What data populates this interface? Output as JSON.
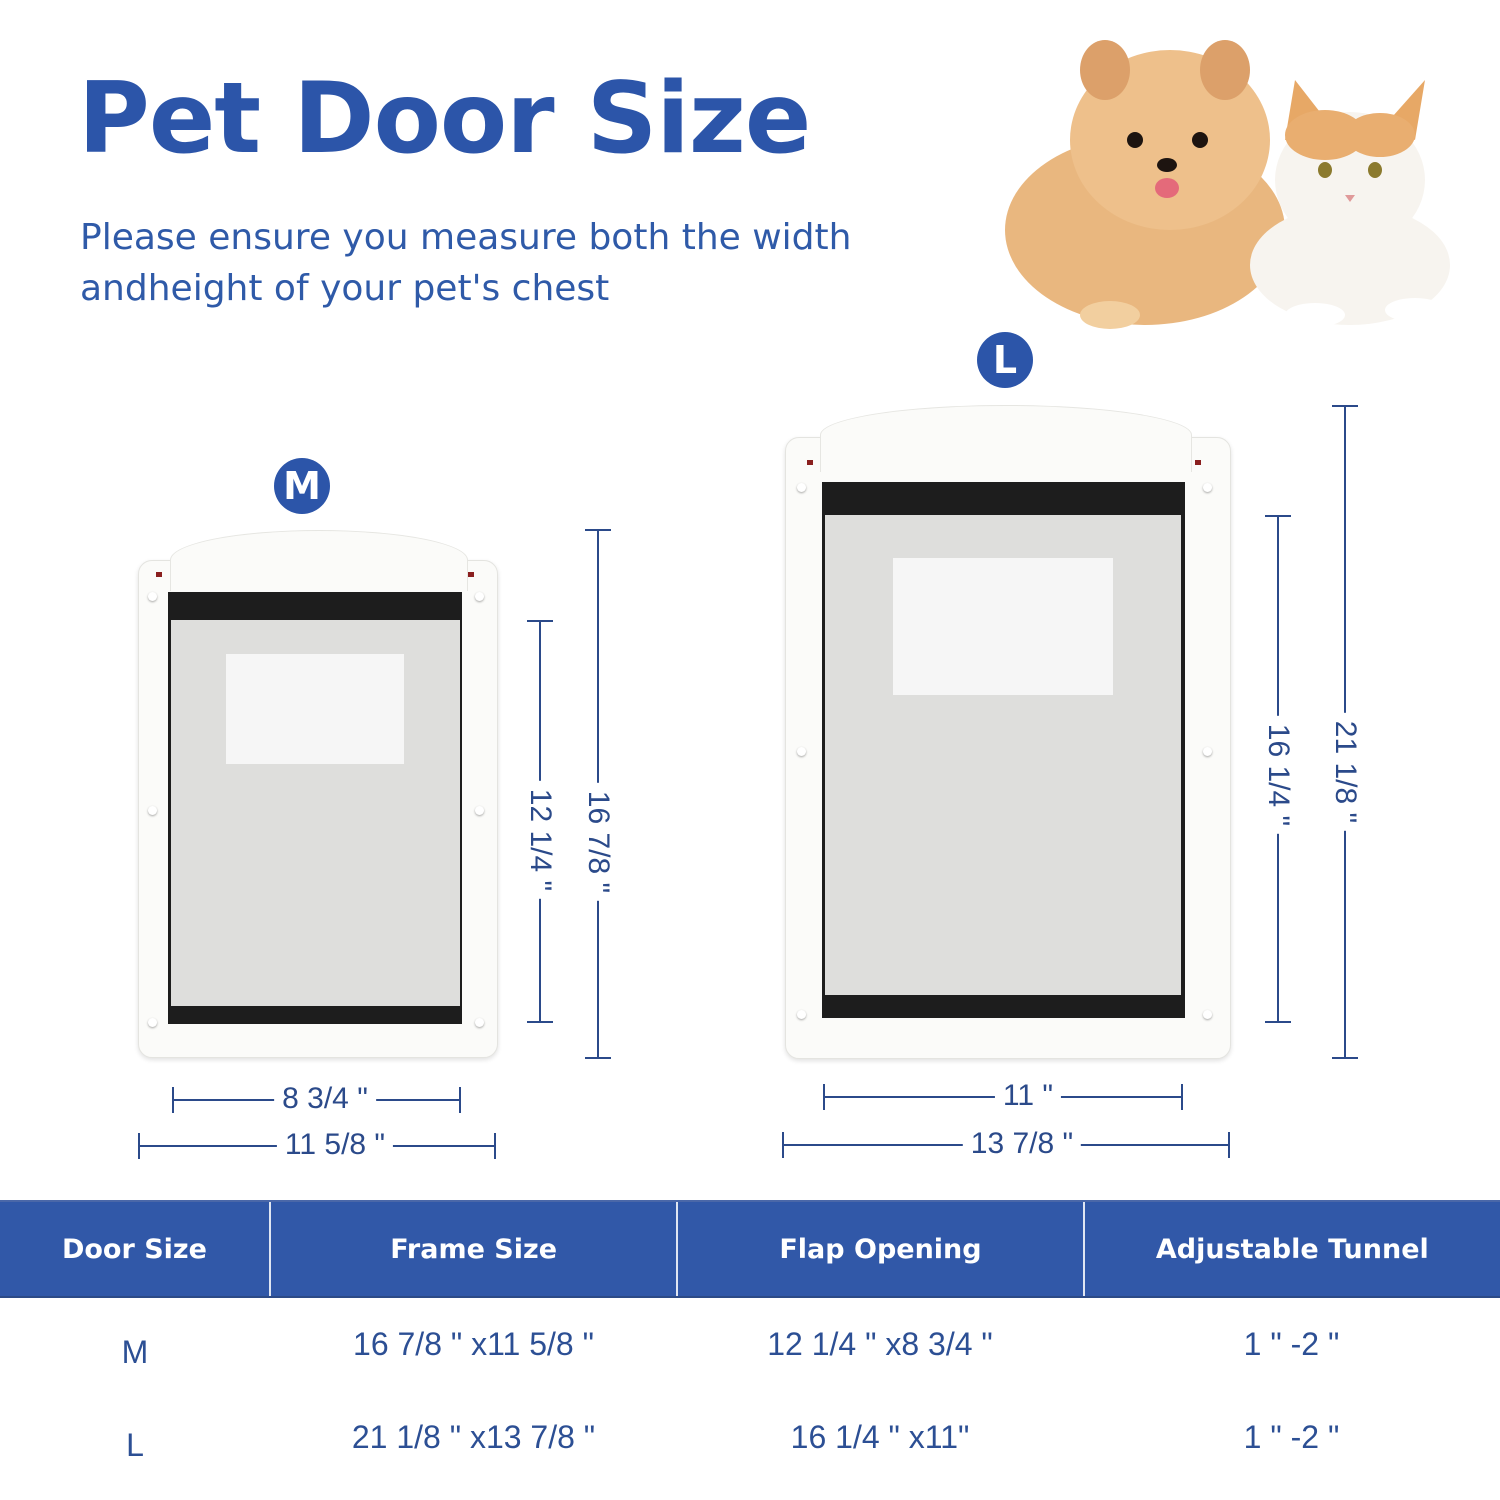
{
  "header": {
    "title": "Pet Door Size",
    "subtitle_line1": "Please ensure you measure both the width",
    "subtitle_line2": "andheight of your pet's chest"
  },
  "image": {
    "subject": "pets-photo"
  },
  "colors": {
    "brand_blue": "#2c55a9",
    "table_header": "#3158a8",
    "dimension_line": "#2b4a8a",
    "table_text": "#2c4f94"
  },
  "doors": {
    "m": {
      "badge": "M",
      "flap_height": "12 1/4 \"",
      "frame_height": "16 7/8 \"",
      "flap_width": "8 3/4 \"",
      "frame_width": "11 5/8 \""
    },
    "l": {
      "badge": "L",
      "flap_height": "16 1/4 \"",
      "frame_height": "21 1/8 \"",
      "flap_width": "11 \"",
      "frame_width": "13 7/8 \""
    }
  },
  "table": {
    "headers": [
      "Door Size",
      "Frame Size",
      "Flap Opening",
      "Adjustable Tunnel"
    ],
    "rows": [
      [
        "M",
        "16 7/8 \" x11 5/8 \"",
        "12 1/4 \" x8 3/4 \"",
        "1 \" -2 \""
      ],
      [
        "L",
        "21 1/8 \" x13 7/8 \"",
        "16 1/4 \" x11\"",
        "1 \" -2 \""
      ]
    ]
  }
}
